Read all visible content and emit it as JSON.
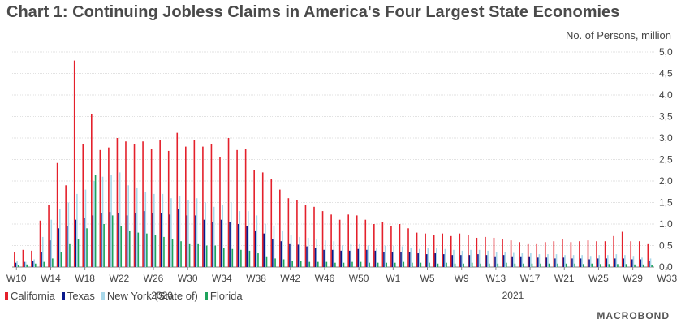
{
  "chart_data": {
    "type": "bar",
    "title": "Chart 1: Continuing Jobless Claims in America's Four Largest State Economies",
    "ylabel": "No. of Persons, million",
    "ylim": [
      0,
      5
    ],
    "yticks": [
      "0,0",
      "0,5",
      "1,0",
      "1,5",
      "2,0",
      "2,5",
      "3,0",
      "3,5",
      "4,0",
      "4,5",
      "5,0"
    ],
    "ytick_values": [
      0,
      0.5,
      1,
      1.5,
      2,
      2.5,
      3,
      3.5,
      4,
      4.5,
      5
    ],
    "grid": true,
    "legend_position": "bottom-left",
    "x_tick_labels": [
      "W10",
      "W14",
      "W18",
      "W22",
      "W26",
      "W30",
      "W34",
      "W38",
      "W42",
      "W46",
      "W50",
      "W1",
      "W5",
      "W9",
      "W13",
      "W17",
      "W21",
      "W25",
      "W29",
      "W33"
    ],
    "year_labels": [
      "2020",
      "2021"
    ],
    "series": [
      {
        "name": "California",
        "color": "#e4202b",
        "values": [
          0.35,
          0.4,
          0.38,
          1.08,
          1.45,
          2.42,
          1.9,
          4.8,
          2.85,
          3.55,
          2.72,
          2.78,
          3.0,
          2.92,
          2.85,
          2.92,
          2.75,
          2.95,
          2.7,
          3.12,
          2.8,
          2.95,
          2.8,
          2.85,
          2.55,
          3.0,
          2.72,
          2.75,
          2.25,
          2.2,
          2.05,
          1.8,
          1.6,
          1.55,
          1.45,
          1.4,
          1.3,
          1.22,
          1.1,
          1.22,
          1.2,
          1.1,
          1.0,
          1.05,
          0.95,
          1.0,
          0.9,
          0.8,
          0.78,
          0.75,
          0.78,
          0.72,
          0.78,
          0.75,
          0.68,
          0.7,
          0.68,
          0.65,
          0.62,
          0.58,
          0.55,
          0.55,
          0.58,
          0.6,
          0.65,
          0.58,
          0.6,
          0.62,
          0.6,
          0.6,
          0.72,
          0.82,
          0.6,
          0.6,
          0.55
        ]
      },
      {
        "name": "Texas",
        "color": "#0a1a8c",
        "values": [
          0.1,
          0.12,
          0.15,
          0.35,
          0.62,
          0.9,
          0.95,
          1.1,
          1.15,
          1.2,
          1.25,
          1.28,
          1.25,
          1.2,
          1.25,
          1.3,
          1.25,
          1.25,
          1.22,
          1.35,
          1.2,
          1.2,
          1.1,
          1.05,
          1.1,
          1.05,
          1.0,
          0.95,
          0.85,
          0.78,
          0.65,
          0.6,
          0.55,
          0.52,
          0.48,
          0.45,
          0.4,
          0.4,
          0.38,
          0.38,
          0.42,
          0.4,
          0.38,
          0.35,
          0.35,
          0.35,
          0.35,
          0.32,
          0.3,
          0.32,
          0.3,
          0.28,
          0.28,
          0.28,
          0.3,
          0.28,
          0.25,
          0.28,
          0.25,
          0.25,
          0.25,
          0.22,
          0.22,
          0.2,
          0.22,
          0.2,
          0.2,
          0.18,
          0.2,
          0.2,
          0.2,
          0.2,
          0.18,
          0.18,
          0.15
        ]
      },
      {
        "name": "New York (State of)",
        "color": "#a8d8ea",
        "values": [
          0.15,
          0.12,
          0.18,
          0.7,
          1.1,
          1.35,
          1.5,
          1.7,
          1.8,
          2.0,
          2.1,
          2.15,
          2.2,
          1.9,
          1.85,
          1.75,
          1.7,
          1.7,
          1.6,
          1.65,
          1.55,
          1.6,
          1.5,
          1.4,
          1.45,
          1.5,
          1.3,
          1.3,
          1.2,
          1.0,
          0.95,
          0.85,
          0.75,
          0.7,
          0.68,
          0.65,
          0.62,
          0.6,
          0.5,
          0.55,
          0.55,
          0.5,
          0.45,
          0.5,
          0.5,
          0.48,
          0.45,
          0.42,
          0.45,
          0.45,
          0.42,
          0.4,
          0.38,
          0.4,
          0.4,
          0.38,
          0.35,
          0.35,
          0.33,
          0.32,
          0.32,
          0.3,
          0.3,
          0.3,
          0.28,
          0.28,
          0.28,
          0.26,
          0.28,
          0.28,
          0.3,
          0.28,
          0.26,
          0.22,
          0.2
        ]
      },
      {
        "name": "Florida",
        "color": "#1fa35c",
        "values": [
          0.05,
          0.06,
          0.08,
          0.12,
          0.2,
          0.35,
          0.55,
          0.65,
          0.9,
          2.15,
          1.0,
          1.2,
          0.95,
          0.85,
          0.8,
          0.78,
          0.75,
          0.7,
          0.65,
          0.6,
          0.55,
          0.55,
          0.5,
          0.5,
          0.45,
          0.42,
          0.4,
          0.38,
          0.32,
          0.25,
          0.2,
          0.18,
          0.15,
          0.15,
          0.12,
          0.12,
          0.12,
          0.1,
          0.1,
          0.12,
          0.12,
          0.1,
          0.1,
          0.1,
          0.1,
          0.12,
          0.1,
          0.1,
          0.1,
          0.08,
          0.1,
          0.08,
          0.08,
          0.1,
          0.08,
          0.08,
          0.08,
          0.1,
          0.08,
          0.08,
          0.08,
          0.08,
          0.08,
          0.08,
          0.08,
          0.08,
          0.07,
          0.08,
          0.07,
          0.07,
          0.07,
          0.07,
          0.06,
          0.06,
          0.05
        ]
      }
    ]
  },
  "brand": "MACROBOND"
}
